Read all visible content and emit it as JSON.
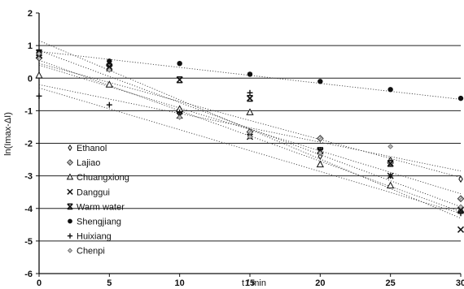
{
  "chart_data": {
    "type": "scatter",
    "title": "",
    "xlabel": "t / min",
    "ylabel": "ln(Imax-ΔI)",
    "xlim": [
      0,
      30
    ],
    "ylim": [
      -6,
      2
    ],
    "xticks": [
      0,
      5,
      10,
      15,
      20,
      25,
      30
    ],
    "yticks": [
      -6,
      -5,
      -4,
      -3,
      -2,
      -1,
      0,
      1,
      2
    ],
    "solid_gridlines_y": [
      1,
      0,
      -1,
      -2,
      -3,
      -4,
      -5
    ],
    "legend_position": "left",
    "series": [
      {
        "name": "Ethanol",
        "marker": "thin-diamond",
        "x": [
          0,
          5,
          10,
          15,
          20,
          25,
          30
        ],
        "y": [
          0.72,
          0.28,
          -1.1,
          -1.75,
          -2.4,
          -2.52,
          -3.1
        ],
        "trend": [
          [
            0,
            0.45
          ],
          [
            30,
            -3.05
          ]
        ]
      },
      {
        "name": "Lajiao",
        "marker": "hatched-diamond",
        "x": [
          0,
          5,
          10,
          15,
          20,
          25,
          30
        ],
        "y": [
          0.62,
          0.4,
          -1.0,
          -1.65,
          -1.85,
          -2.6,
          -3.7
        ],
        "trend": [
          [
            0,
            0.4
          ],
          [
            30,
            -3.55
          ]
        ]
      },
      {
        "name": "Chuangxiong",
        "marker": "open-triangle",
        "x": [
          0,
          5,
          10,
          15,
          20,
          25,
          30
        ],
        "y": [
          0.08,
          -0.2,
          -0.95,
          -1.05,
          -2.65,
          -3.3,
          -4.05
        ],
        "trend": [
          [
            0,
            0.85
          ],
          [
            30,
            -3.95
          ]
        ]
      },
      {
        "name": "Danggui",
        "marker": "x",
        "x": [
          0,
          5,
          10,
          15,
          20,
          25,
          30
        ],
        "y": [
          0.7,
          0.3,
          -1.15,
          -1.8,
          -2.25,
          -3.0,
          -4.65
        ],
        "trend": [
          [
            0,
            0.55
          ],
          [
            30,
            -4.1
          ]
        ]
      },
      {
        "name": "Warm water",
        "marker": "bowtie-x",
        "x": [
          0,
          5,
          10,
          15,
          20,
          25,
          30
        ],
        "y": [
          0.78,
          0.35,
          -0.05,
          -0.62,
          -2.22,
          -2.62,
          -4.05
        ],
        "trend": [
          [
            0,
            1.15
          ],
          [
            30,
            -4.3
          ]
        ]
      },
      {
        "name": "Shengjiang",
        "marker": "filled-circle",
        "x": [
          0,
          5,
          10,
          15,
          20,
          25,
          30
        ],
        "y": [
          0.78,
          0.52,
          0.45,
          0.12,
          -0.1,
          -0.35,
          -0.62
        ],
        "trend": [
          [
            0,
            0.82
          ],
          [
            30,
            -0.65
          ]
        ]
      },
      {
        "name": "Huixiang",
        "marker": "plus",
        "x": [
          0,
          5,
          10,
          15,
          20,
          25,
          30
        ],
        "y": [
          -0.55,
          -0.82,
          -1.05,
          -0.45,
          -2.2,
          -3.0,
          -4.15
        ],
        "trend": [
          [
            0,
            -0.3
          ],
          [
            30,
            -4.15
          ]
        ]
      },
      {
        "name": "Chenpi",
        "marker": "small-diamond",
        "x": [
          0,
          5,
          10,
          15,
          20,
          25,
          30
        ],
        "y": [
          0.75,
          0.25,
          -1.2,
          -1.8,
          -2.3,
          -2.1,
          -3.95
        ],
        "trend": [
          [
            0,
            -0.2
          ],
          [
            30,
            -2.85
          ]
        ]
      }
    ]
  }
}
